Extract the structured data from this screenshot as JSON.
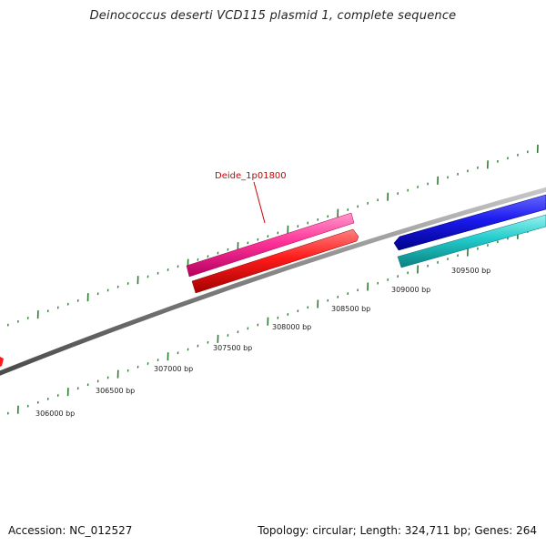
{
  "title": "Deinococcus deserti VCD115 plasmid 1, complete sequence",
  "footer": {
    "accession": "Accession: NC_012527",
    "summary": "Topology: circular; Length: 324,711 bp; Genes: 264"
  },
  "gene_label": {
    "text": "Deide_1p01800",
    "color": "#cc0000"
  },
  "colors": {
    "backbone": "#808080",
    "tick": "#2e7d32",
    "gene_pink": "#ff3399",
    "gene_red": "#ff1a1a",
    "gene_blue": "#1a1aee",
    "gene_cyan": "#22cccc"
  },
  "scale": {
    "unit": "bp",
    "labels": [
      {
        "value": 306000,
        "text": "306000 bp"
      },
      {
        "value": 306500,
        "text": "306500 bp"
      },
      {
        "value": 307000,
        "text": "307000 bp"
      },
      {
        "value": 307500,
        "text": "307500 bp"
      },
      {
        "value": 308000,
        "text": "308000 bp"
      },
      {
        "value": 308500,
        "text": "308500 bp"
      },
      {
        "value": 309000,
        "text": "309000 bp"
      },
      {
        "value": 309500,
        "text": "309500 bp"
      }
    ]
  }
}
